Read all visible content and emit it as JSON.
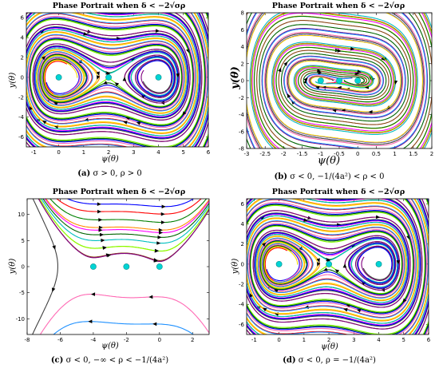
{
  "chart_data": [
    {
      "type": "line",
      "id": "a",
      "title": "Phase Portrait when δ < −2√σρ",
      "xlabel": "ψ(θ)",
      "ylabel": "y(θ)",
      "caption_tag": "(a)",
      "caption": "σ > 0, ρ > 0",
      "xlim": [
        -1.3,
        6
      ],
      "ylim": [
        -7,
        6.5
      ],
      "xticks": [
        -1,
        0,
        1,
        2,
        3,
        4,
        5,
        6
      ],
      "yticks": [
        -6,
        -4,
        -2,
        0,
        2,
        4,
        6
      ],
      "equilibria": [
        {
          "x": 0,
          "y": 0
        },
        {
          "x": 2,
          "y": 0
        },
        {
          "x": 4,
          "y": 0
        }
      ]
    },
    {
      "type": "line",
      "id": "b",
      "title": "Phase Portrait when δ < −2√σρ",
      "xlabel": "ψ(θ)",
      "ylabel": "y(θ)",
      "caption_tag": "(b)",
      "caption": "σ < 0, −1/(4a²) < ρ < 0",
      "xlim": [
        -3,
        2
      ],
      "ylim": [
        -8,
        8
      ],
      "xticks": [
        -3,
        -2.5,
        -2,
        -1.5,
        -1,
        -0.5,
        0,
        0.5,
        1,
        1.5,
        2
      ],
      "yticks": [
        -8,
        -6,
        -4,
        -2,
        0,
        2,
        4,
        6,
        8
      ],
      "equilibria": [
        {
          "x": -1,
          "y": 0
        },
        {
          "x": -0.5,
          "y": 0
        },
        {
          "x": 0,
          "y": 0
        }
      ]
    },
    {
      "type": "line",
      "id": "c",
      "title": "Phase Portrait when δ < −2√σρ",
      "xlabel": "ψ(θ)",
      "ylabel": "y(θ)",
      "caption_tag": "(c)",
      "caption": "σ < 0, −∞ < ρ < −1/(4a²)",
      "xlim": [
        -8,
        3
      ],
      "ylim": [
        -13,
        13
      ],
      "xticks": [
        -8,
        -6,
        -4,
        -2,
        0,
        2
      ],
      "yticks": [
        -10,
        -5,
        0,
        5,
        10
      ],
      "equilibria": [
        {
          "x": -4,
          "y": 0
        },
        {
          "x": -2,
          "y": 0
        },
        {
          "x": 0,
          "y": 0
        }
      ]
    },
    {
      "type": "line",
      "id": "d",
      "title": "Phase Portrait when δ < −2√σρ",
      "xlabel": "ψ(θ)",
      "ylabel": "y(θ)",
      "caption_tag": "(d)",
      "caption": "σ < 0, ρ = −1/(4a²)",
      "xlim": [
        -1.3,
        6
      ],
      "ylim": [
        -7,
        6.5
      ],
      "xticks": [
        -1,
        0,
        1,
        2,
        3,
        4,
        5,
        6
      ],
      "yticks": [
        -6,
        -4,
        -2,
        0,
        2,
        4,
        6
      ],
      "equilibria": [
        {
          "x": 0,
          "y": 0
        },
        {
          "x": 2,
          "y": 0
        },
        {
          "x": 4,
          "y": 0
        }
      ]
    }
  ],
  "palette": [
    "#0000ff",
    "#ff0000",
    "#ff8c00",
    "#008000",
    "#ff00ff",
    "#00bfbf",
    "#ffd700",
    "#8b4513",
    "#7fff00",
    "#800080",
    "#404040",
    "#ff69b4",
    "#1e90ff",
    "#006400"
  ],
  "marker_color": "#00d4d4"
}
